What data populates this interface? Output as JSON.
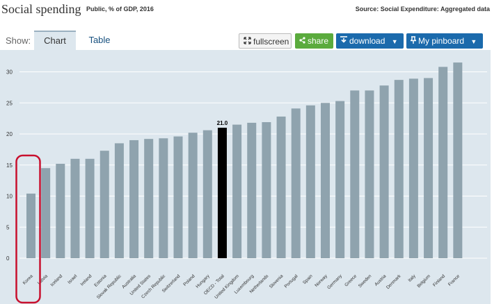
{
  "header": {
    "title": "Social spending",
    "subtitle": "Public, % of GDP, 2016",
    "source": "Source: Social Expenditure: Aggregated data"
  },
  "toolbar": {
    "show_label": "Show:",
    "tab_chart": "Chart",
    "tab_table": "Table",
    "fullscreen_label": "fullscreen",
    "share_label": "share",
    "download_label": "download",
    "pinboard_label": "My pinboard"
  },
  "colors": {
    "bar": "#8fa3ae",
    "highlight_bar": "#000000",
    "background": "#dde7ee",
    "circle": "#c8102e"
  },
  "chart_data": {
    "type": "bar",
    "categories": [
      "Korea",
      "Latvia",
      "Iceland",
      "Israel",
      "Ireland",
      "Estonia",
      "Slovak Republic",
      "Australia",
      "United States",
      "Czech Republic",
      "Switzerland",
      "Poland",
      "Hungary",
      "OECD - Total",
      "United Kingdom",
      "Luxembourg",
      "Netherlands",
      "Slovenia",
      "Portugal",
      "Spain",
      "Norway",
      "Germany",
      "Greece",
      "Sweden",
      "Austria",
      "Denmark",
      "Italy",
      "Belgium",
      "Finland",
      "France"
    ],
    "values": [
      10.4,
      14.5,
      15.2,
      16.0,
      16.0,
      17.3,
      18.5,
      19.0,
      19.2,
      19.3,
      19.6,
      20.2,
      20.6,
      21.0,
      21.5,
      21.8,
      21.9,
      22.8,
      24.1,
      24.6,
      25.0,
      25.3,
      27.0,
      27.0,
      27.8,
      28.7,
      28.9,
      29.0,
      30.8,
      31.5
    ],
    "highlight": "OECD - Total",
    "highlight_label": "21.0",
    "annotated_category": "Korea",
    "yticks": [
      0,
      5,
      10,
      15,
      20,
      25,
      30
    ],
    "ylim": [
      0,
      33
    ]
  }
}
